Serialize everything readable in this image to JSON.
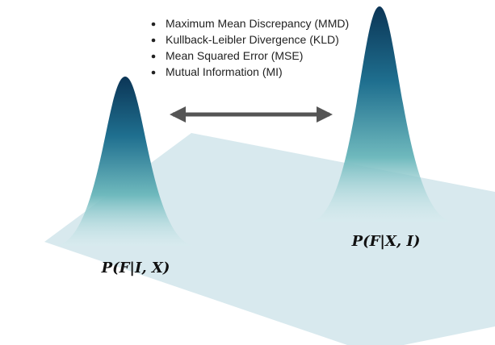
{
  "bullets": [
    "Maximum Mean Discrepancy (MMD)",
    "Kullback-Leibler Divergence (KLD)",
    "Mean Squared Error (MSE)",
    "Mutual Information (MI)"
  ],
  "labels": {
    "left": "P(F|I, X)",
    "right": "P(F|X, I)"
  }
}
